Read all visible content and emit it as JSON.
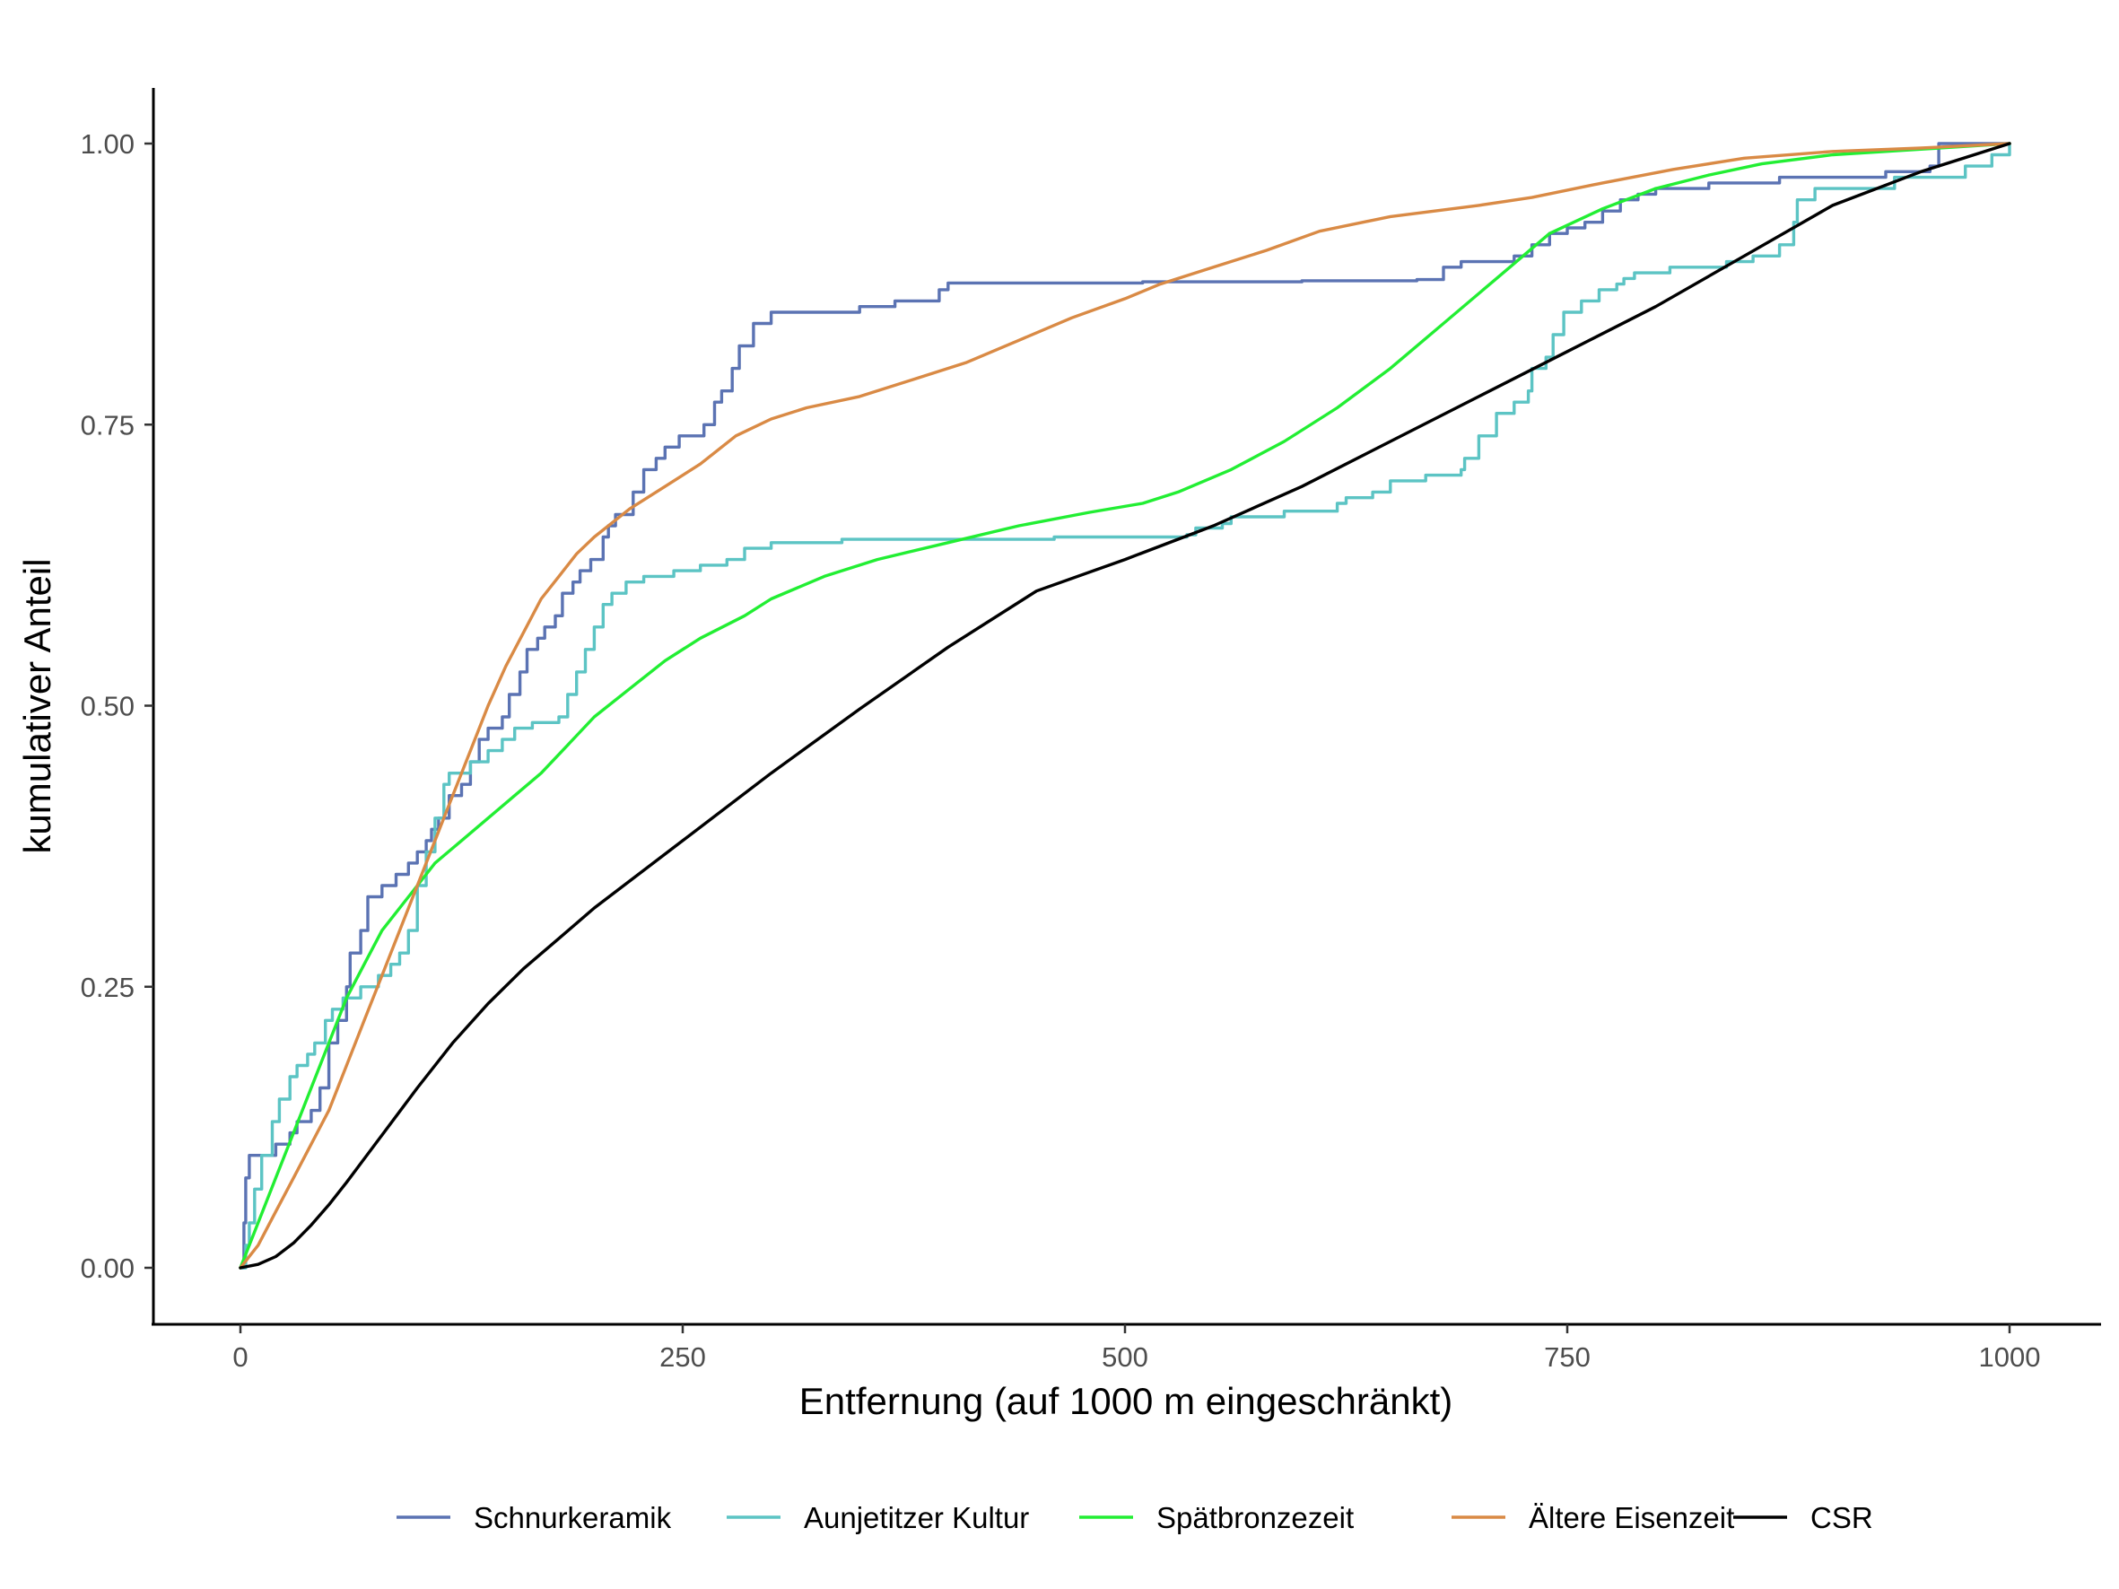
{
  "chart_data": {
    "type": "line",
    "title": "",
    "xlabel": "Entfernung (auf 1000 m eingeschränkt)",
    "ylabel": "kumulativer Anteil",
    "xlim": [
      -50,
      1050
    ],
    "ylim": [
      -0.05,
      1.05
    ],
    "x_ticks": [
      0,
      250,
      500,
      750,
      1000
    ],
    "x_tick_labels": [
      "0",
      "250",
      "500",
      "750",
      "1000"
    ],
    "y_ticks": [
      0,
      0.25,
      0.5,
      0.75,
      1.0
    ],
    "y_tick_labels": [
      "0.00",
      "0.25",
      "0.50",
      "0.75",
      "1.00"
    ],
    "grid": false,
    "legend_position": "bottom",
    "series": [
      {
        "name": "Schnurkeramik",
        "color": "#5b73b3",
        "step": true,
        "points": [
          [
            0,
            0
          ],
          [
            2,
            0.04
          ],
          [
            3,
            0.08
          ],
          [
            5,
            0.1
          ],
          [
            20,
            0.11
          ],
          [
            28,
            0.12
          ],
          [
            32,
            0.13
          ],
          [
            40,
            0.14
          ],
          [
            45,
            0.16
          ],
          [
            50,
            0.2
          ],
          [
            55,
            0.22
          ],
          [
            60,
            0.25
          ],
          [
            62,
            0.28
          ],
          [
            68,
            0.3
          ],
          [
            72,
            0.33
          ],
          [
            80,
            0.34
          ],
          [
            88,
            0.35
          ],
          [
            95,
            0.36
          ],
          [
            100,
            0.37
          ],
          [
            105,
            0.38
          ],
          [
            108,
            0.39
          ],
          [
            112,
            0.4
          ],
          [
            118,
            0.42
          ],
          [
            125,
            0.43
          ],
          [
            130,
            0.45
          ],
          [
            135,
            0.47
          ],
          [
            140,
            0.48
          ],
          [
            148,
            0.49
          ],
          [
            152,
            0.51
          ],
          [
            158,
            0.53
          ],
          [
            162,
            0.55
          ],
          [
            168,
            0.56
          ],
          [
            172,
            0.57
          ],
          [
            178,
            0.58
          ],
          [
            182,
            0.6
          ],
          [
            188,
            0.61
          ],
          [
            192,
            0.62
          ],
          [
            198,
            0.63
          ],
          [
            205,
            0.65
          ],
          [
            208,
            0.66
          ],
          [
            212,
            0.67
          ],
          [
            222,
            0.69
          ],
          [
            228,
            0.71
          ],
          [
            235,
            0.72
          ],
          [
            240,
            0.73
          ],
          [
            248,
            0.74
          ],
          [
            262,
            0.75
          ],
          [
            268,
            0.77
          ],
          [
            272,
            0.78
          ],
          [
            278,
            0.8
          ],
          [
            282,
            0.82
          ],
          [
            290,
            0.84
          ],
          [
            300,
            0.85
          ],
          [
            350,
            0.855
          ],
          [
            370,
            0.86
          ],
          [
            395,
            0.87
          ],
          [
            400,
            0.876
          ],
          [
            510,
            0.877
          ],
          [
            600,
            0.878
          ],
          [
            665,
            0.879
          ],
          [
            680,
            0.89
          ],
          [
            690,
            0.895
          ],
          [
            720,
            0.9
          ],
          [
            730,
            0.91
          ],
          [
            740,
            0.92
          ],
          [
            750,
            0.925
          ],
          [
            760,
            0.93
          ],
          [
            770,
            0.94
          ],
          [
            780,
            0.95
          ],
          [
            790,
            0.955
          ],
          [
            800,
            0.96
          ],
          [
            830,
            0.965
          ],
          [
            870,
            0.97
          ],
          [
            930,
            0.975
          ],
          [
            955,
            0.98
          ],
          [
            960,
            1.0
          ],
          [
            1000,
            1.0
          ]
        ]
      },
      {
        "name": "Aunjetitzer Kultur",
        "color": "#5cc4c4",
        "step": true,
        "points": [
          [
            0,
            0
          ],
          [
            3,
            0.02
          ],
          [
            5,
            0.04
          ],
          [
            8,
            0.07
          ],
          [
            12,
            0.1
          ],
          [
            18,
            0.13
          ],
          [
            22,
            0.15
          ],
          [
            28,
            0.17
          ],
          [
            32,
            0.18
          ],
          [
            38,
            0.19
          ],
          [
            42,
            0.2
          ],
          [
            48,
            0.22
          ],
          [
            52,
            0.23
          ],
          [
            58,
            0.24
          ],
          [
            68,
            0.25
          ],
          [
            78,
            0.26
          ],
          [
            85,
            0.27
          ],
          [
            90,
            0.28
          ],
          [
            95,
            0.3
          ],
          [
            100,
            0.34
          ],
          [
            105,
            0.37
          ],
          [
            110,
            0.4
          ],
          [
            115,
            0.43
          ],
          [
            118,
            0.44
          ],
          [
            130,
            0.45
          ],
          [
            140,
            0.46
          ],
          [
            148,
            0.47
          ],
          [
            155,
            0.48
          ],
          [
            165,
            0.485
          ],
          [
            180,
            0.49
          ],
          [
            185,
            0.51
          ],
          [
            190,
            0.53
          ],
          [
            195,
            0.55
          ],
          [
            200,
            0.57
          ],
          [
            205,
            0.59
          ],
          [
            210,
            0.6
          ],
          [
            218,
            0.61
          ],
          [
            228,
            0.615
          ],
          [
            245,
            0.62
          ],
          [
            260,
            0.625
          ],
          [
            275,
            0.63
          ],
          [
            285,
            0.64
          ],
          [
            300,
            0.645
          ],
          [
            340,
            0.648
          ],
          [
            460,
            0.65
          ],
          [
            535,
            0.652
          ],
          [
            540,
            0.658
          ],
          [
            555,
            0.662
          ],
          [
            560,
            0.668
          ],
          [
            590,
            0.673
          ],
          [
            620,
            0.68
          ],
          [
            625,
            0.685
          ],
          [
            640,
            0.69
          ],
          [
            650,
            0.7
          ],
          [
            670,
            0.705
          ],
          [
            690,
            0.71
          ],
          [
            692,
            0.72
          ],
          [
            700,
            0.74
          ],
          [
            710,
            0.76
          ],
          [
            720,
            0.77
          ],
          [
            728,
            0.78
          ],
          [
            730,
            0.8
          ],
          [
            738,
            0.81
          ],
          [
            742,
            0.83
          ],
          [
            748,
            0.85
          ],
          [
            758,
            0.86
          ],
          [
            768,
            0.87
          ],
          [
            778,
            0.875
          ],
          [
            782,
            0.88
          ],
          [
            788,
            0.885
          ],
          [
            808,
            0.89
          ],
          [
            840,
            0.895
          ],
          [
            855,
            0.9
          ],
          [
            870,
            0.91
          ],
          [
            878,
            0.93
          ],
          [
            880,
            0.95
          ],
          [
            890,
            0.96
          ],
          [
            935,
            0.97
          ],
          [
            960,
            0.97
          ],
          [
            975,
            0.98
          ],
          [
            990,
            0.99
          ],
          [
            1000,
            1.0
          ]
        ]
      },
      {
        "name": "Spätbronzezeit",
        "color": "#22ee33",
        "step": false,
        "points": [
          [
            0,
            0
          ],
          [
            10,
            0.04
          ],
          [
            20,
            0.08
          ],
          [
            30,
            0.12
          ],
          [
            40,
            0.16
          ],
          [
            50,
            0.2
          ],
          [
            60,
            0.24
          ],
          [
            70,
            0.27
          ],
          [
            80,
            0.3
          ],
          [
            90,
            0.32
          ],
          [
            100,
            0.34
          ],
          [
            110,
            0.36
          ],
          [
            125,
            0.38
          ],
          [
            140,
            0.4
          ],
          [
            155,
            0.42
          ],
          [
            170,
            0.44
          ],
          [
            185,
            0.465
          ],
          [
            200,
            0.49
          ],
          [
            220,
            0.515
          ],
          [
            240,
            0.54
          ],
          [
            260,
            0.56
          ],
          [
            285,
            0.58
          ],
          [
            300,
            0.595
          ],
          [
            330,
            0.615
          ],
          [
            360,
            0.63
          ],
          [
            400,
            0.645
          ],
          [
            440,
            0.66
          ],
          [
            480,
            0.672
          ],
          [
            510,
            0.68
          ],
          [
            530,
            0.69
          ],
          [
            560,
            0.71
          ],
          [
            590,
            0.735
          ],
          [
            620,
            0.765
          ],
          [
            650,
            0.8
          ],
          [
            680,
            0.84
          ],
          [
            710,
            0.88
          ],
          [
            740,
            0.92
          ],
          [
            770,
            0.942
          ],
          [
            800,
            0.96
          ],
          [
            830,
            0.972
          ],
          [
            860,
            0.982
          ],
          [
            900,
            0.99
          ],
          [
            950,
            0.995
          ],
          [
            1000,
            1.0
          ]
        ]
      },
      {
        "name": "Ältere Eisenzeit",
        "color": "#d98a45",
        "step": false,
        "points": [
          [
            0,
            0
          ],
          [
            10,
            0.02
          ],
          [
            20,
            0.05
          ],
          [
            30,
            0.08
          ],
          [
            40,
            0.11
          ],
          [
            50,
            0.14
          ],
          [
            60,
            0.18
          ],
          [
            70,
            0.22
          ],
          [
            80,
            0.26
          ],
          [
            90,
            0.3
          ],
          [
            100,
            0.34
          ],
          [
            110,
            0.38
          ],
          [
            120,
            0.42
          ],
          [
            130,
            0.46
          ],
          [
            140,
            0.5
          ],
          [
            150,
            0.535
          ],
          [
            160,
            0.565
          ],
          [
            170,
            0.595
          ],
          [
            180,
            0.615
          ],
          [
            190,
            0.635
          ],
          [
            200,
            0.65
          ],
          [
            220,
            0.675
          ],
          [
            240,
            0.695
          ],
          [
            260,
            0.715
          ],
          [
            280,
            0.74
          ],
          [
            300,
            0.755
          ],
          [
            320,
            0.765
          ],
          [
            350,
            0.775
          ],
          [
            380,
            0.79
          ],
          [
            410,
            0.805
          ],
          [
            440,
            0.825
          ],
          [
            470,
            0.845
          ],
          [
            500,
            0.862
          ],
          [
            520,
            0.875
          ],
          [
            550,
            0.89
          ],
          [
            580,
            0.905
          ],
          [
            610,
            0.922
          ],
          [
            650,
            0.935
          ],
          [
            700,
            0.945
          ],
          [
            730,
            0.952
          ],
          [
            770,
            0.965
          ],
          [
            810,
            0.977
          ],
          [
            850,
            0.987
          ],
          [
            900,
            0.993
          ],
          [
            950,
            0.996
          ],
          [
            1000,
            1.0
          ]
        ]
      },
      {
        "name": "CSR",
        "color": "#000000",
        "step": false,
        "points": [
          [
            0,
            0
          ],
          [
            10,
            0.003
          ],
          [
            20,
            0.01
          ],
          [
            30,
            0.022
          ],
          [
            40,
            0.038
          ],
          [
            50,
            0.056
          ],
          [
            60,
            0.076
          ],
          [
            70,
            0.097
          ],
          [
            80,
            0.118
          ],
          [
            90,
            0.139
          ],
          [
            100,
            0.16
          ],
          [
            120,
            0.2
          ],
          [
            140,
            0.235
          ],
          [
            160,
            0.266
          ],
          [
            180,
            0.293
          ],
          [
            200,
            0.32
          ],
          [
            250,
            0.38
          ],
          [
            300,
            0.44
          ],
          [
            350,
            0.497
          ],
          [
            400,
            0.552
          ],
          [
            450,
            0.602
          ],
          [
            500,
            0.63
          ],
          [
            550,
            0.66
          ],
          [
            600,
            0.695
          ],
          [
            650,
            0.735
          ],
          [
            700,
            0.775
          ],
          [
            750,
            0.815
          ],
          [
            800,
            0.855
          ],
          [
            850,
            0.9
          ],
          [
            900,
            0.945
          ],
          [
            950,
            0.975
          ],
          [
            1000,
            1.0
          ]
        ]
      }
    ]
  }
}
